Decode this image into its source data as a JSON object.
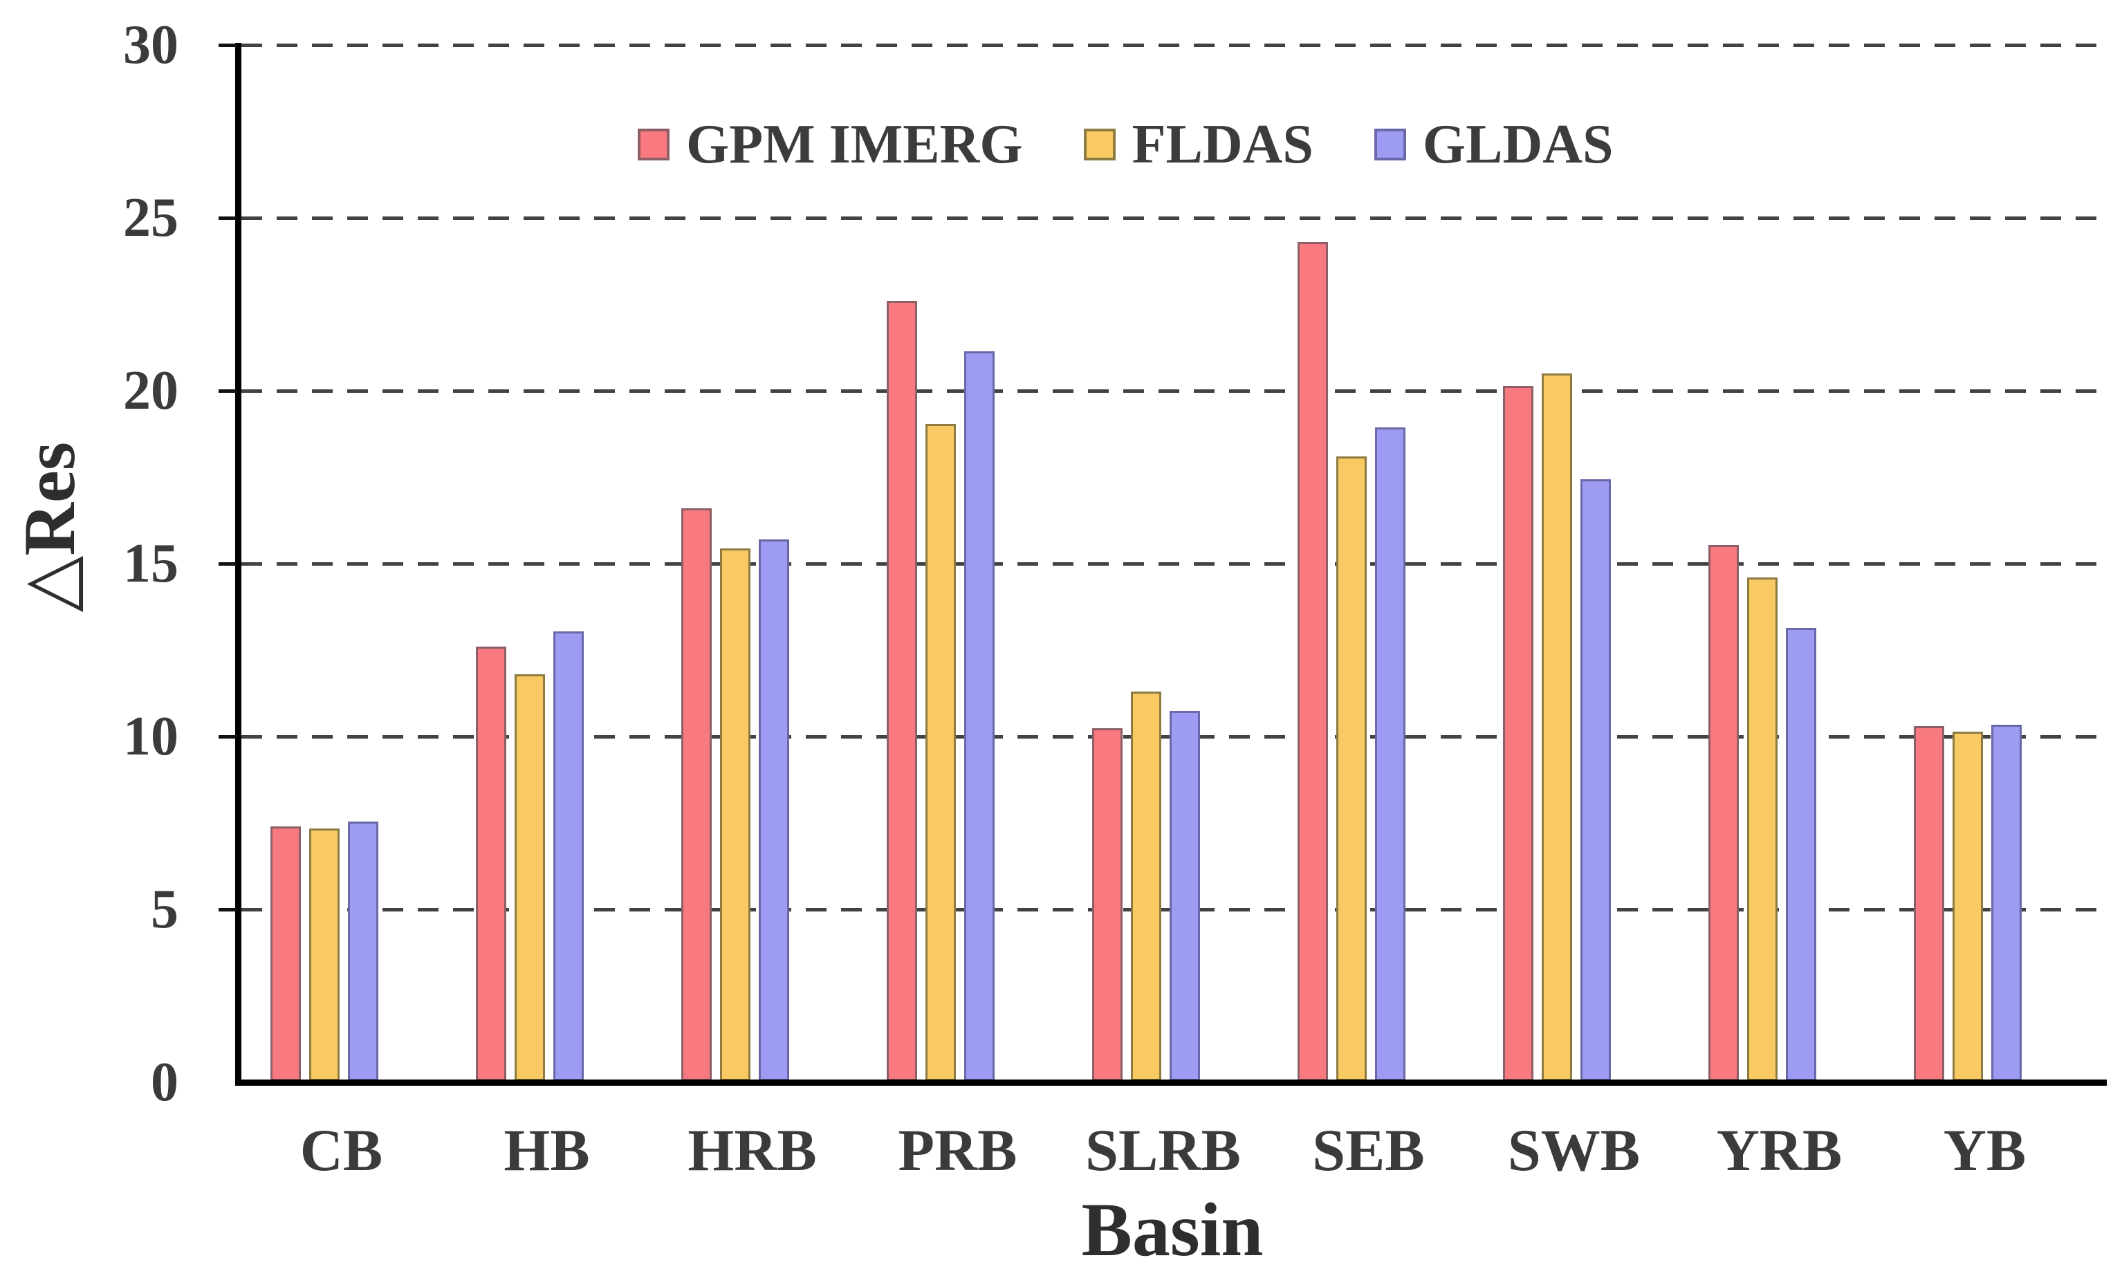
{
  "chart_data": {
    "type": "bar",
    "title": "",
    "xlabel": "Basin",
    "ylabel": "△Res",
    "categories": [
      "CB",
      "HB",
      "HRB",
      "PRB",
      "SLRB",
      "SEB",
      "SWB",
      "YRB",
      "YB"
    ],
    "series": [
      {
        "name": "GPM IMERG",
        "color": "#f8797f",
        "edge_color": "#8c6066",
        "values": [
          7.35,
          12.55,
          16.55,
          22.55,
          10.2,
          24.25,
          20.1,
          15.5,
          10.25
        ]
      },
      {
        "name": "FLDAS",
        "color": "#f9ca63",
        "edge_color": "#8d7b41",
        "values": [
          7.3,
          11.75,
          15.4,
          19.0,
          11.25,
          18.05,
          20.45,
          14.55,
          10.1
        ]
      },
      {
        "name": "GLDAS",
        "color": "#9d9bf2",
        "edge_color": "#6a68a8",
        "values": [
          7.5,
          13.0,
          15.65,
          21.1,
          10.7,
          18.9,
          17.4,
          13.1,
          10.3
        ]
      }
    ],
    "ylim": [
      0,
      30
    ],
    "yticks": [
      0,
      5,
      10,
      15,
      20,
      25,
      30
    ],
    "grid": "dashed horizontal gridlines at each y tick",
    "legend_position": "top-center inside plot",
    "axis_color": "#000000",
    "gridline_color": "#424242",
    "text_color": "#3b3b3b"
  }
}
